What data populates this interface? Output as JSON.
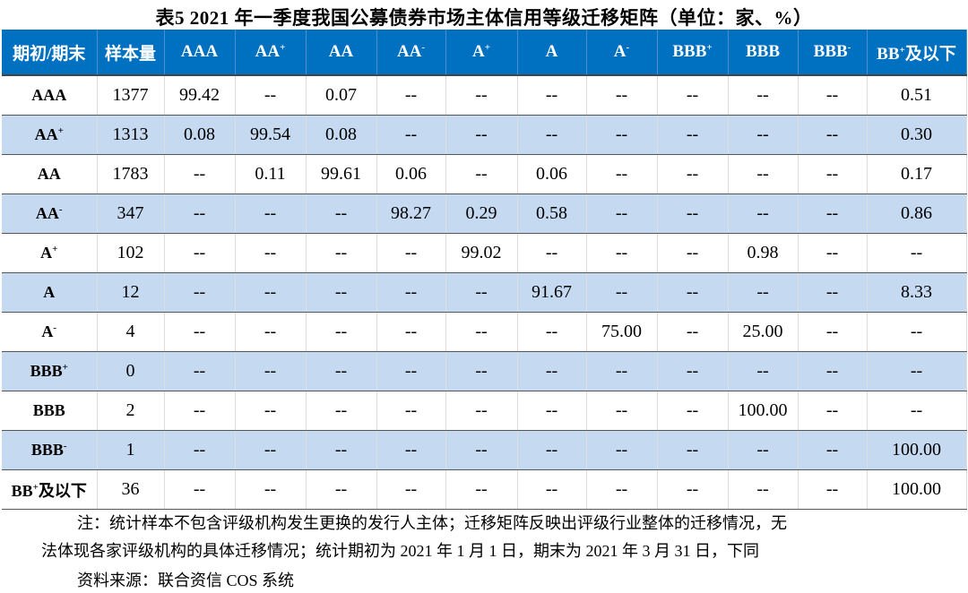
{
  "title": "表5 2021 年一季度我国公募债券市场主体信用等级迁移矩阵（单位：家、%）",
  "colors": {
    "header": "#0070C0",
    "alt_row": "#C5D9F1"
  },
  "headers": [
    {
      "base": "期初/期末",
      "sup": ""
    },
    {
      "base": "样本量",
      "sup": ""
    },
    {
      "base": "AAA",
      "sup": ""
    },
    {
      "base": "AA",
      "sup": "+"
    },
    {
      "base": "AA",
      "sup": ""
    },
    {
      "base": "AA",
      "sup": "-"
    },
    {
      "base": "A",
      "sup": "+"
    },
    {
      "base": "A",
      "sup": ""
    },
    {
      "base": "A",
      "sup": "-"
    },
    {
      "base": "BBB",
      "sup": "+"
    },
    {
      "base": "BBB",
      "sup": ""
    },
    {
      "base": "BBB",
      "sup": "-"
    },
    {
      "base": "BB",
      "sup": "+",
      "suffix": "及以下"
    }
  ],
  "rows": [
    {
      "label": {
        "base": "AAA",
        "sup": ""
      },
      "cells": [
        "1377",
        "99.42",
        "--",
        "0.07",
        "--",
        "--",
        "--",
        "--",
        "--",
        "--",
        "--",
        "0.51"
      ]
    },
    {
      "label": {
        "base": "AA",
        "sup": "+"
      },
      "cells": [
        "1313",
        "0.08",
        "99.54",
        "0.08",
        "--",
        "--",
        "--",
        "--",
        "--",
        "--",
        "--",
        "0.30"
      ]
    },
    {
      "label": {
        "base": "AA",
        "sup": ""
      },
      "cells": [
        "1783",
        "--",
        "0.11",
        "99.61",
        "0.06",
        "--",
        "0.06",
        "--",
        "--",
        "--",
        "--",
        "0.17"
      ]
    },
    {
      "label": {
        "base": "AA",
        "sup": "-"
      },
      "cells": [
        "347",
        "--",
        "--",
        "--",
        "98.27",
        "0.29",
        "0.58",
        "--",
        "--",
        "--",
        "--",
        "0.86"
      ]
    },
    {
      "label": {
        "base": "A",
        "sup": "+"
      },
      "cells": [
        "102",
        "--",
        "--",
        "--",
        "--",
        "99.02",
        "--",
        "--",
        "--",
        "0.98",
        "--",
        "--"
      ]
    },
    {
      "label": {
        "base": "A",
        "sup": ""
      },
      "cells": [
        "12",
        "--",
        "--",
        "--",
        "--",
        "--",
        "91.67",
        "--",
        "--",
        "--",
        "--",
        "8.33"
      ]
    },
    {
      "label": {
        "base": "A",
        "sup": "-"
      },
      "cells": [
        "4",
        "--",
        "--",
        "--",
        "--",
        "--",
        "--",
        "75.00",
        "--",
        "25.00",
        "--",
        "--"
      ]
    },
    {
      "label": {
        "base": "BBB",
        "sup": "+"
      },
      "cells": [
        "0",
        "--",
        "--",
        "--",
        "--",
        "--",
        "--",
        "--",
        "--",
        "--",
        "--",
        "--"
      ]
    },
    {
      "label": {
        "base": "BBB",
        "sup": ""
      },
      "cells": [
        "2",
        "--",
        "--",
        "--",
        "--",
        "--",
        "--",
        "--",
        "--",
        "100.00",
        "--",
        "--"
      ]
    },
    {
      "label": {
        "base": "BBB",
        "sup": "-"
      },
      "cells": [
        "1",
        "--",
        "--",
        "--",
        "--",
        "--",
        "--",
        "--",
        "--",
        "--",
        "--",
        "100.00"
      ]
    },
    {
      "label": {
        "base": "BB",
        "sup": "+",
        "suffix": "及以下"
      },
      "cells": [
        "36",
        "--",
        "--",
        "--",
        "--",
        "--",
        "--",
        "--",
        "--",
        "--",
        "--",
        "100.00"
      ]
    }
  ],
  "notes": {
    "line1": "注：统计样本不包含评级机构发生更换的发行人主体；迁移矩阵反映出评级行业整体的迁移情况，无",
    "line2": "法体现各家评级机构的具体迁移情况；统计期初为 2021 年 1 月 1 日，期末为 2021 年 3 月 31 日，下同",
    "source": "资料来源：联合资信 COS 系统"
  }
}
